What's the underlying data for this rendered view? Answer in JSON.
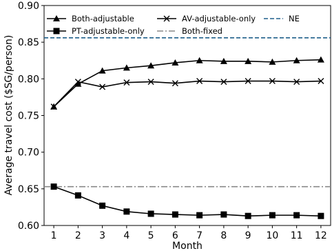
{
  "chart_data": {
    "type": "line",
    "title": "",
    "xlabel": "Month",
    "ylabel": "Average travel cost ($SG/person)",
    "xlim": [
      0.6,
      12.4
    ],
    "ylim": [
      0.6,
      0.9
    ],
    "x_ticks": [
      1,
      2,
      3,
      4,
      5,
      6,
      7,
      8,
      9,
      10,
      11,
      12
    ],
    "x_tick_labels": [
      "1",
      "2",
      "3",
      "4",
      "5",
      "6",
      "7",
      "8",
      "9",
      "10",
      "11",
      "12"
    ],
    "y_ticks": [
      0.6,
      0.65,
      0.7,
      0.75,
      0.8,
      0.85,
      0.9
    ],
    "y_tick_labels": [
      "0.60",
      "0.65",
      "0.70",
      "0.75",
      "0.80",
      "0.85",
      "0.90"
    ],
    "grid": false,
    "legend_placement": "top",
    "x": [
      1,
      2,
      3,
      4,
      5,
      6,
      7,
      8,
      9,
      10,
      11,
      12
    ],
    "series": [
      {
        "name": "Both-adjustable",
        "marker": "triangle",
        "color": "#000000",
        "values": [
          0.762,
          0.793,
          0.811,
          0.815,
          0.818,
          0.822,
          0.825,
          0.824,
          0.824,
          0.823,
          0.825,
          0.826
        ]
      },
      {
        "name": "PT-adjustable-only",
        "marker": "square",
        "color": "#000000",
        "values": [
          0.653,
          0.641,
          0.627,
          0.619,
          0.616,
          0.615,
          0.614,
          0.615,
          0.613,
          0.614,
          0.614,
          0.613
        ]
      },
      {
        "name": "AV-adjustable-only",
        "marker": "x",
        "color": "#000000",
        "values": [
          0.762,
          0.796,
          0.789,
          0.795,
          0.796,
          0.794,
          0.797,
          0.796,
          0.797,
          0.797,
          0.796,
          0.797
        ]
      }
    ],
    "reference_lines": [
      {
        "name": "Both-fixed",
        "style": "dashdot",
        "color": "#888888",
        "value": 0.653
      },
      {
        "name": "NE",
        "style": "dashed",
        "color": "#1f5f8b",
        "value": 0.856
      }
    ]
  }
}
